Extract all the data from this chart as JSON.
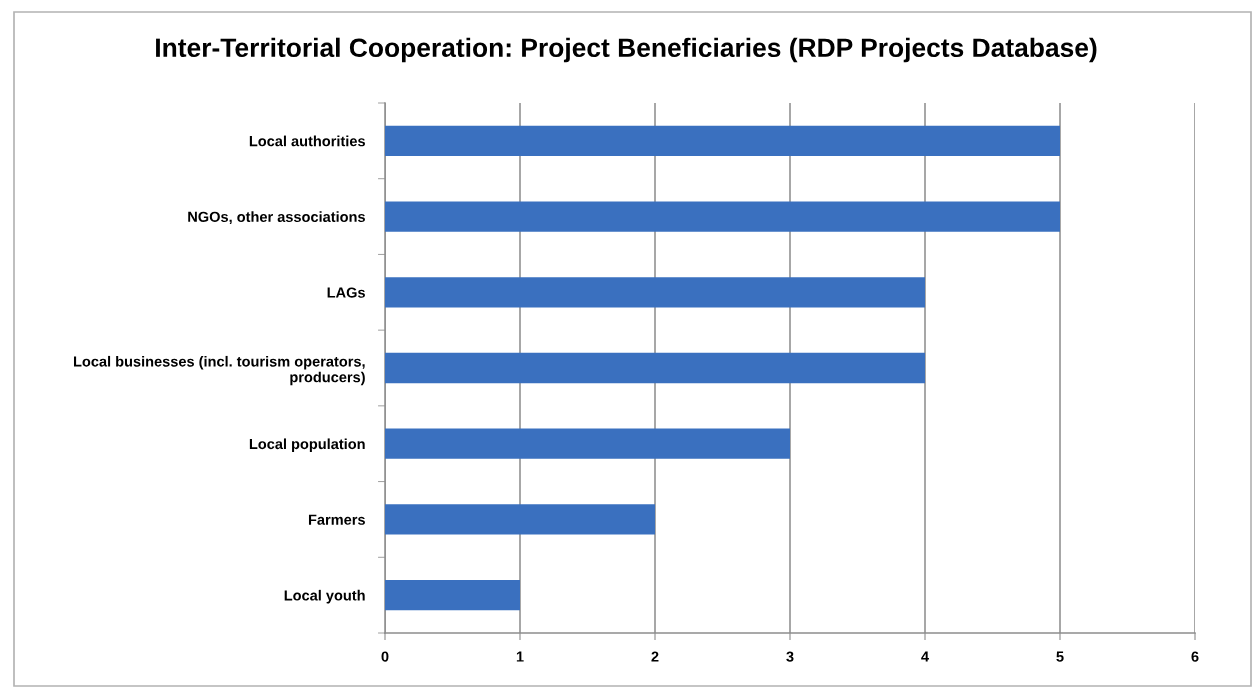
{
  "chart_data": {
    "type": "bar",
    "orientation": "horizontal",
    "title": "Inter-Territorial Cooperation: Project Beneficiaries (RDP Projects Database)",
    "categories": [
      "Local authorities",
      "NGOs, other associations",
      "LAGs",
      "Local businesses (incl. tourism operators,\nproducers)",
      "Local population",
      "Farmers",
      "Local youth"
    ],
    "values": [
      5,
      5,
      4,
      4,
      3,
      2,
      1
    ],
    "color": "#3a70bf",
    "xlim": [
      0,
      6
    ],
    "xticks": [
      0,
      1,
      2,
      3,
      4,
      5,
      6
    ],
    "grid": "x"
  }
}
